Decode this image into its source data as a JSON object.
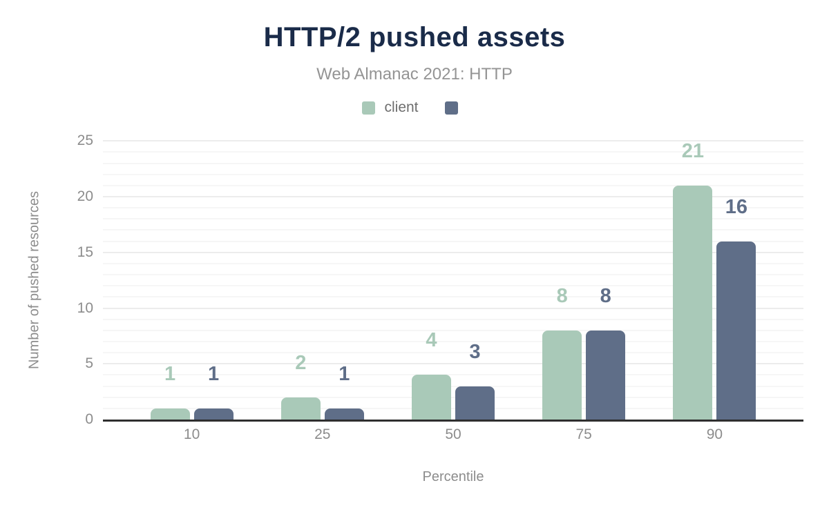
{
  "chart_data": {
    "type": "bar",
    "title": "HTTP/2 pushed assets",
    "subtitle": "Web Almanac 2021: HTTP",
    "categories": [
      "10",
      "25",
      "50",
      "75",
      "90"
    ],
    "series": [
      {
        "name": "client",
        "color": "#a9c9b8",
        "values": [
          1,
          2,
          4,
          8,
          21
        ]
      },
      {
        "name": "",
        "color": "#5f6e88",
        "values": [
          1,
          1,
          3,
          8,
          16
        ]
      }
    ],
    "xlabel": "Percentile",
    "ylabel": "Number of pushed resources",
    "ylim": [
      0,
      25
    ],
    "yticks": [
      0,
      5,
      10,
      15,
      20,
      25
    ],
    "grid": "horizontal, minor every 1 unit, major every 5 units",
    "legend_position": "top",
    "data_labels": true,
    "colors": {
      "title": "#1a2b49",
      "subtitle": "#949494",
      "axis_line": "#2e2e2e",
      "tick_labels": "#8c8c8c",
      "gridline_minor": "#f6f6f6",
      "gridline_major": "#ececec",
      "background": "#ffffff"
    }
  }
}
